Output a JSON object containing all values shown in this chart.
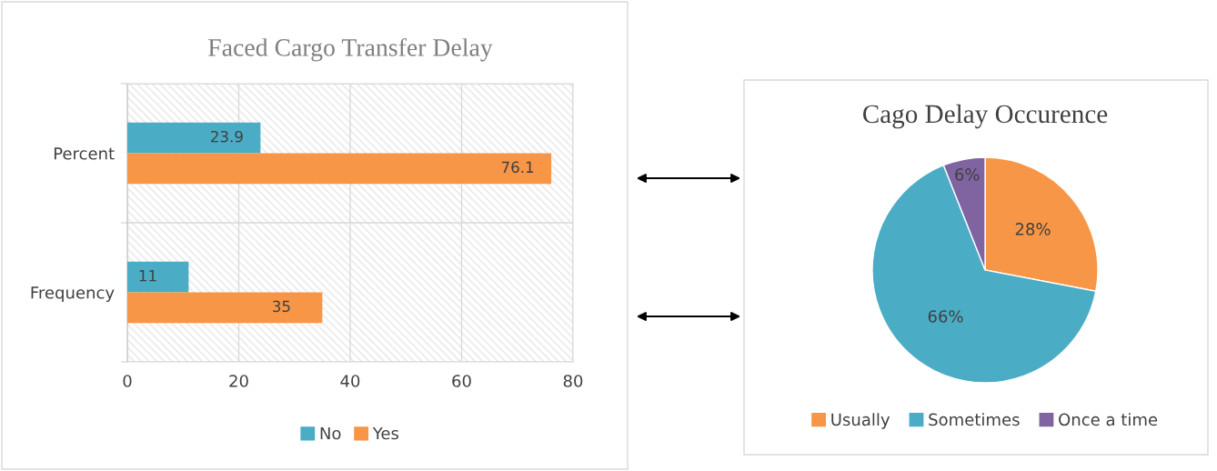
{
  "chart_data": [
    {
      "type": "bar",
      "title": "Faced Cargo Transfer Delay",
      "orientation": "horizontal",
      "categories": [
        "Percent",
        "Frequency"
      ],
      "series": [
        {
          "name": "No",
          "color": "#4bacc6",
          "values": [
            23.9,
            11
          ]
        },
        {
          "name": "Yes",
          "color": "#f79646",
          "values": [
            76.1,
            35
          ]
        }
      ],
      "xlim": [
        0,
        80
      ],
      "xticks": [
        0,
        20,
        40,
        60,
        80
      ],
      "grid": true,
      "legend": "bottom",
      "data_labels": true
    },
    {
      "type": "pie",
      "title": "Cago Delay Occurence",
      "categories": [
        "Usually",
        "Sometimes",
        "Once a time"
      ],
      "values": [
        28,
        66,
        6
      ],
      "colors": [
        "#f79646",
        "#4bacc6",
        "#8064a2"
      ],
      "legend": "bottom",
      "value_labels": [
        "28%",
        "66%",
        "6%"
      ]
    }
  ]
}
